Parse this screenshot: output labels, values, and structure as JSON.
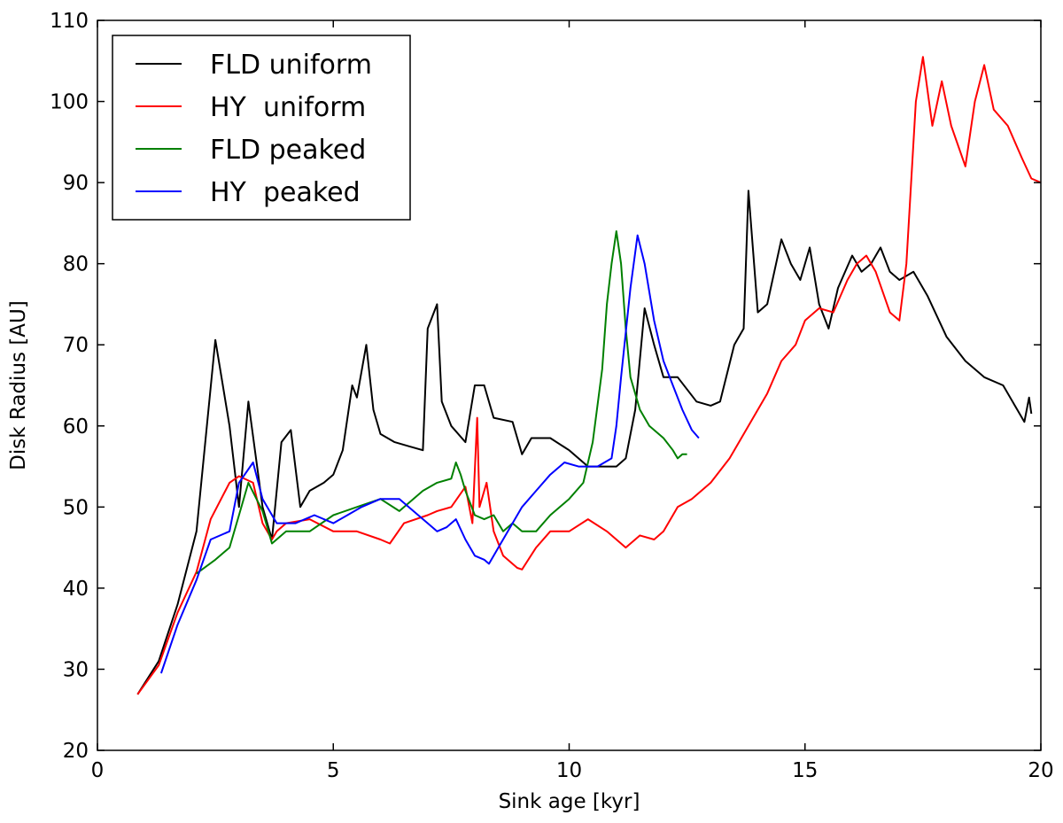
{
  "chart_data": {
    "type": "line",
    "xlabel": "Sink age [kyr]",
    "ylabel": "Disk Radius [AU]",
    "xlim": [
      0,
      20
    ],
    "ylim": [
      20,
      110
    ],
    "xticks": [
      0,
      5,
      10,
      15,
      20
    ],
    "yticks": [
      20,
      30,
      40,
      50,
      60,
      70,
      80,
      90,
      100,
      110
    ],
    "grid": false,
    "legend_position": "top-left",
    "series": [
      {
        "name": "FLD uniform",
        "color": "#000000",
        "x": [
          0.85,
          1.3,
          1.7,
          2.1,
          2.5,
          2.8,
          3.0,
          3.2,
          3.5,
          3.7,
          3.9,
          4.1,
          4.3,
          4.5,
          4.8,
          5.0,
          5.2,
          5.4,
          5.5,
          5.7,
          5.85,
          6.0,
          6.3,
          6.6,
          6.9,
          7.0,
          7.2,
          7.3,
          7.5,
          7.8,
          8.0,
          8.2,
          8.4,
          8.8,
          9.0,
          9.2,
          9.6,
          10.0,
          10.4,
          10.6,
          11.0,
          11.2,
          11.4,
          11.6,
          11.8,
          12.0,
          12.3,
          12.7,
          13.0,
          13.2,
          13.5,
          13.7,
          13.8,
          14.0,
          14.2,
          14.5,
          14.7,
          14.9,
          15.1,
          15.3,
          15.5,
          15.7,
          16.0,
          16.2,
          16.4,
          16.6,
          16.8,
          17.0,
          17.3,
          17.6,
          18.0,
          18.4,
          18.8,
          19.2,
          19.5,
          19.65,
          19.75,
          19.8
        ],
        "values": [
          26.9,
          31.0,
          38.0,
          47.0,
          70.6,
          60.0,
          50.0,
          63.0,
          50.0,
          46.0,
          58.0,
          59.5,
          50.0,
          52.0,
          53.0,
          54.0,
          57.0,
          65.0,
          63.5,
          70.0,
          62.0,
          59.0,
          58.0,
          57.5,
          57.0,
          72.0,
          75.0,
          63.0,
          60.0,
          58.0,
          65.0,
          65.0,
          61.0,
          60.5,
          56.5,
          58.5,
          58.5,
          57.0,
          55.0,
          55.0,
          55.0,
          56.0,
          62.0,
          74.5,
          70.0,
          66.0,
          66.0,
          63.0,
          62.5,
          63.0,
          70.0,
          72.0,
          89.0,
          74.0,
          75.0,
          83.0,
          80.0,
          78.0,
          82.0,
          75.0,
          72.0,
          77.0,
          81.0,
          79.0,
          80.0,
          82.0,
          79.0,
          78.0,
          79.0,
          76.0,
          71.0,
          68.0,
          66.0,
          65.0,
          62.0,
          60.5,
          63.5,
          61.5
        ]
      },
      {
        "name": "HY  uniform",
        "color": "#ff0000",
        "x": [
          0.85,
          1.3,
          1.7,
          2.1,
          2.4,
          2.8,
          3.0,
          3.3,
          3.5,
          3.7,
          3.8,
          4.0,
          4.5,
          5.0,
          5.5,
          6.0,
          6.2,
          6.5,
          7.0,
          7.2,
          7.5,
          7.8,
          7.95,
          8.05,
          8.1,
          8.25,
          8.4,
          8.6,
          8.9,
          9.0,
          9.3,
          9.6,
          10.0,
          10.4,
          10.8,
          11.2,
          11.5,
          11.8,
          12.0,
          12.3,
          12.6,
          13.0,
          13.4,
          13.8,
          14.2,
          14.5,
          14.8,
          15.0,
          15.3,
          15.6,
          15.9,
          16.1,
          16.3,
          16.5,
          16.8,
          17.0,
          17.15,
          17.35,
          17.5,
          17.7,
          17.9,
          18.1,
          18.4,
          18.6,
          18.8,
          19.0,
          19.3,
          19.6,
          19.8,
          20.0
        ],
        "values": [
          26.9,
          30.5,
          37.0,
          42.0,
          48.5,
          53.0,
          53.8,
          53.0,
          48.0,
          46.0,
          47.0,
          48.0,
          48.5,
          47.0,
          47.0,
          46.0,
          45.5,
          48.0,
          49.0,
          49.5,
          50.0,
          52.5,
          48.0,
          61.0,
          50.0,
          53.0,
          47.0,
          44.0,
          42.5,
          42.3,
          45.0,
          47.0,
          47.0,
          48.5,
          47.0,
          45.0,
          46.5,
          46.0,
          47.0,
          50.0,
          51.0,
          53.0,
          56.0,
          60.0,
          64.0,
          68.0,
          70.0,
          73.0,
          74.5,
          74.0,
          78.0,
          80.0,
          81.0,
          79.0,
          74.0,
          73.0,
          80.0,
          100.0,
          105.5,
          97.0,
          102.5,
          97.0,
          92.0,
          100.0,
          104.5,
          99.0,
          97.0,
          93.0,
          90.5,
          90.0
        ]
      },
      {
        "name": "FLD peaked",
        "color": "#008000",
        "x": [
          2.1,
          2.5,
          2.8,
          3.0,
          3.2,
          3.5,
          3.7,
          4.0,
          4.5,
          5.0,
          5.5,
          6.0,
          6.4,
          6.9,
          7.2,
          7.5,
          7.6,
          7.7,
          7.8,
          8.0,
          8.2,
          8.4,
          8.6,
          8.8,
          9.0,
          9.3,
          9.6,
          10.0,
          10.3,
          10.5,
          10.7,
          10.8,
          10.9,
          11.0,
          11.1,
          11.2,
          11.3,
          11.5,
          11.7,
          12.0,
          12.2,
          12.3,
          12.4,
          12.5
        ],
        "values": [
          41.8,
          43.5,
          45.0,
          49.0,
          53.0,
          49.5,
          45.5,
          47.0,
          47.0,
          49.0,
          50.0,
          51.0,
          49.5,
          52.0,
          53.0,
          53.5,
          55.5,
          54.0,
          52.0,
          49.0,
          48.5,
          49.0,
          47.0,
          48.0,
          47.0,
          47.0,
          49.0,
          51.0,
          53.0,
          58.0,
          67.0,
          75.0,
          80.0,
          84.0,
          80.0,
          72.0,
          66.0,
          62.0,
          60.0,
          58.5,
          57.0,
          56.0,
          56.5,
          56.5
        ]
      },
      {
        "name": "HY  peaked",
        "color": "#0000ff",
        "x": [
          1.35,
          1.7,
          2.1,
          2.4,
          2.8,
          3.0,
          3.3,
          3.5,
          3.8,
          4.2,
          4.6,
          5.0,
          5.3,
          5.6,
          6.0,
          6.4,
          6.8,
          7.0,
          7.2,
          7.4,
          7.6,
          7.8,
          8.0,
          8.2,
          8.3,
          8.5,
          8.7,
          9.0,
          9.3,
          9.6,
          9.9,
          10.2,
          10.6,
          10.9,
          11.0,
          11.1,
          11.3,
          11.45,
          11.6,
          11.8,
          12.0,
          12.2,
          12.4,
          12.6,
          12.75
        ],
        "values": [
          29.5,
          35.5,
          41.0,
          46.0,
          47.0,
          53.0,
          55.5,
          51.0,
          48.0,
          48.0,
          49.0,
          48.0,
          49.0,
          50.0,
          51.0,
          51.0,
          49.0,
          48.0,
          47.0,
          47.5,
          48.5,
          46.0,
          44.0,
          43.5,
          43.0,
          45.0,
          47.0,
          50.0,
          52.0,
          54.0,
          55.5,
          55.0,
          55.0,
          56.0,
          60.0,
          66.0,
          77.0,
          83.5,
          80.0,
          73.0,
          68.0,
          65.0,
          62.0,
          59.5,
          58.5
        ]
      }
    ]
  }
}
